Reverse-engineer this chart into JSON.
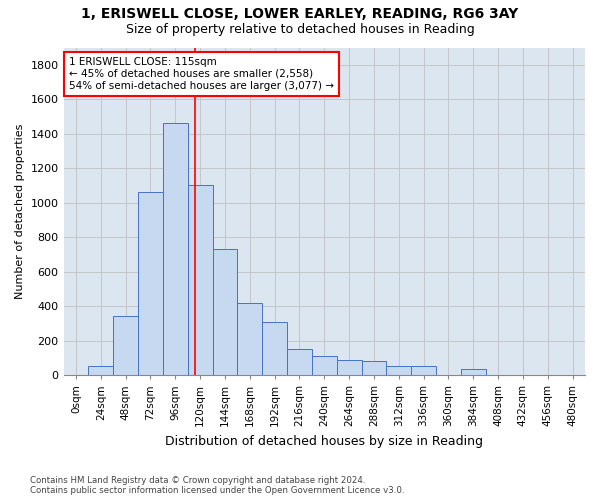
{
  "title_line1": "1, ERISWELL CLOSE, LOWER EARLEY, READING, RG6 3AY",
  "title_line2": "Size of property relative to detached houses in Reading",
  "xlabel": "Distribution of detached houses by size in Reading",
  "ylabel": "Number of detached properties",
  "footnote": "Contains HM Land Registry data © Crown copyright and database right 2024.\nContains public sector information licensed under the Open Government Licence v3.0.",
  "bar_labels": [
    "0sqm",
    "24sqm",
    "48sqm",
    "72sqm",
    "96sqm",
    "120sqm",
    "144sqm",
    "168sqm",
    "192sqm",
    "216sqm",
    "240sqm",
    "264sqm",
    "288sqm",
    "312sqm",
    "336sqm",
    "360sqm",
    "384sqm",
    "408sqm",
    "432sqm",
    "456sqm",
    "480sqm"
  ],
  "bar_values": [
    0,
    55,
    340,
    1060,
    1460,
    1100,
    730,
    415,
    305,
    150,
    110,
    90,
    80,
    50,
    50,
    0,
    35,
    0,
    0,
    0,
    0
  ],
  "bar_color": "#c6d9f1",
  "bar_edge_color": "#4472c4",
  "grid_color": "#c0c0c0",
  "vline_x": 4.79,
  "vline_color": "red",
  "annotation_text": "1 ERISWELL CLOSE: 115sqm\n← 45% of detached houses are smaller (2,558)\n54% of semi-detached houses are larger (3,077) →",
  "annotation_box_color": "red",
  "ylim": [
    0,
    1900
  ],
  "yticks": [
    0,
    200,
    400,
    600,
    800,
    1000,
    1200,
    1400,
    1600,
    1800
  ],
  "background_color": "#dce6f1"
}
